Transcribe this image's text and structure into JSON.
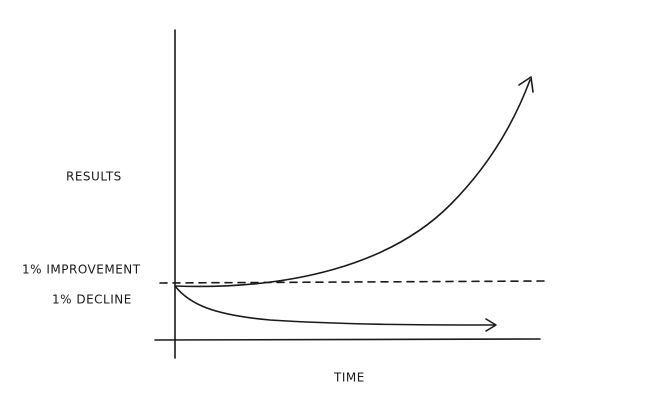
{
  "axes": {
    "y_label": "RESULTS",
    "x_label": "TIME"
  },
  "curves": {
    "improvement": "1% IMPROVEMENT",
    "decline": "1% DECLINE"
  }
}
